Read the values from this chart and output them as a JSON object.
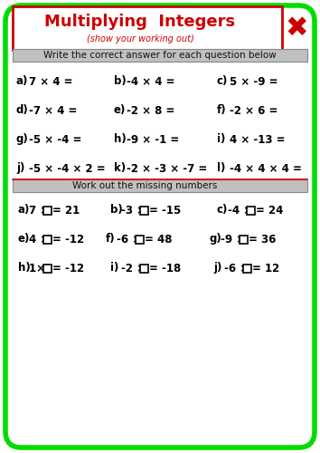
{
  "title": "Multiplying  Integers",
  "subtitle": "(show your working out)",
  "section1_header": "Write the correct answer for each question below",
  "section2_header": "Work out the missing numbers",
  "questions_part1": [
    [
      "a)",
      "7 × 4 =",
      "b)",
      "-4 × 4 =",
      "c)",
      "5 × -9 ="
    ],
    [
      "d)",
      "-7 × 4 =",
      "e)",
      "-2 × 8 =",
      "f)",
      "-2 × 6 ="
    ],
    [
      "g)",
      "-5 × -4 =",
      "h)",
      "-9 × -1 =",
      "i)",
      "4 × -13 ="
    ],
    [
      "j)",
      "-5 × -4 × 2 =",
      "k)",
      "-2 × -3 × -7 =",
      "l)",
      "-4 × 4 × 4 ="
    ]
  ],
  "questions_part2": [
    [
      "a)",
      "7 ×□= 21",
      "b)",
      "-3 ×□= -15",
      "c)",
      "-4 ×□= 24"
    ],
    [
      "e)",
      "4 ×□= -12",
      "f)",
      "-6 ×□= 48",
      "g)",
      "-9 ×□= 36"
    ],
    [
      "h)",
      "1× □= -12",
      "i)",
      "-2 ×□= -18",
      "j)",
      "-6 ×□= 12"
    ]
  ],
  "outer_border_color": "#00dd00",
  "inner_border_color": "#cc0000",
  "title_color": "#cc0000",
  "subtitle_color": "#cc0000",
  "header_bg_color": "#c0c0c0",
  "text_color": "#000000",
  "bg_color": "#ffffff"
}
